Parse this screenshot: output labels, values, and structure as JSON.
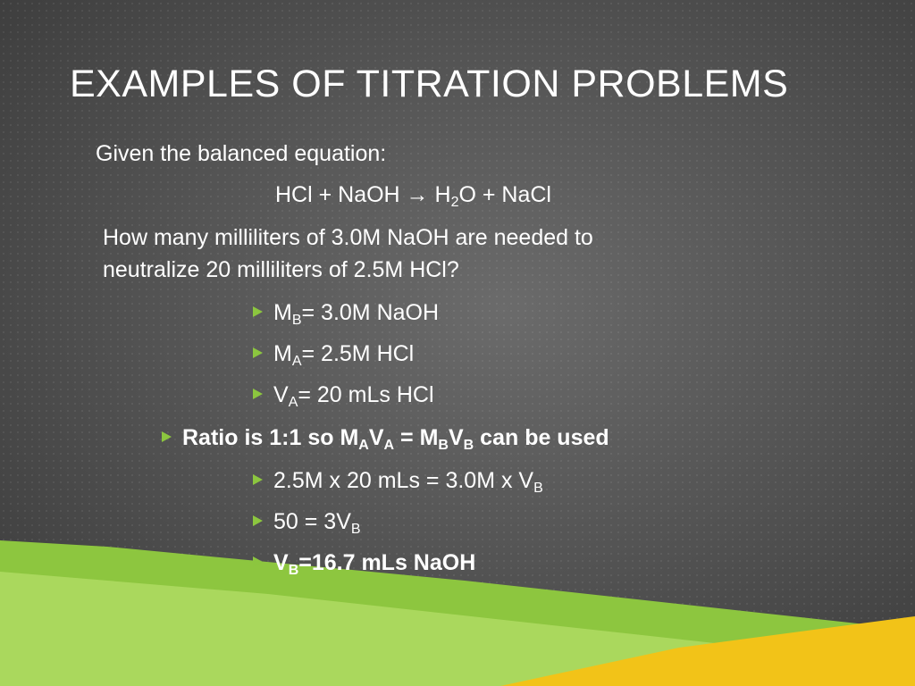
{
  "title": "EXAMPLES OF TITRATION PROBLEMS",
  "lines": [
    {
      "runs": [
        {
          "text": "Given the balanced equation:"
        }
      ]
    },
    {
      "runs": [
        {
          "text": "HCl + NaOH → H"
        },
        {
          "text": "2",
          "sub": true
        },
        {
          "text": "O + NaCl"
        }
      ]
    },
    {
      "runs": [
        {
          "text": "How many milliliters of 3.0M NaOH are needed to"
        }
      ]
    },
    {
      "runs": [
        {
          "text": "neutralize 20 milliliters of 2.5M HCl?"
        }
      ]
    },
    {
      "bullet": true,
      "runs": [
        {
          "text": "M"
        },
        {
          "text": "B",
          "sub": true
        },
        {
          "text": "= 3.0M NaOH"
        }
      ]
    },
    {
      "bullet": true,
      "runs": [
        {
          "text": "M"
        },
        {
          "text": "A",
          "sub": true
        },
        {
          "text": "= 2.5M HCl"
        }
      ]
    },
    {
      "bullet": true,
      "runs": [
        {
          "text": "V"
        },
        {
          "text": "A",
          "sub": true
        },
        {
          "text": "= 20 mLs HCl"
        }
      ]
    },
    {
      "bullet": true,
      "bold": true,
      "runs": [
        {
          "text": "Ratio is 1:1 so M"
        },
        {
          "text": "A",
          "sub": true
        },
        {
          "text": "V"
        },
        {
          "text": "A",
          "sub": true
        },
        {
          "text": " = M"
        },
        {
          "text": "B",
          "sub": true
        },
        {
          "text": "V"
        },
        {
          "text": "B",
          "sub": true
        },
        {
          "text": " can be used"
        }
      ]
    },
    {
      "bullet": true,
      "runs": [
        {
          "text": "2.5M x 20 mLs = 3.0M x V"
        },
        {
          "text": "B",
          "sub": true
        }
      ]
    },
    {
      "bullet": true,
      "runs": [
        {
          "text": "50 = 3V"
        },
        {
          "text": "B",
          "sub": true
        }
      ]
    },
    {
      "bullet": true,
      "bold": true,
      "runs": [
        {
          "text": "V"
        },
        {
          "text": "B",
          "sub": true
        },
        {
          "text": "=16.7 mLs NaOH"
        }
      ]
    }
  ]
}
